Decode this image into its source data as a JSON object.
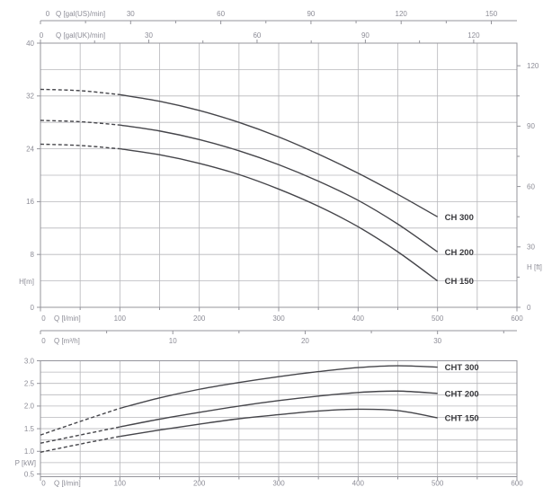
{
  "figure": {
    "description": "Pump performance curves: head (H) and power (P) versus flow rate (Q)",
    "background": "#ffffff",
    "colors": {
      "curve": "#45454a",
      "grid": "#b7b7bb",
      "axis": "#94949b",
      "tick_text": "#8d8d97",
      "curve_label": "#39393d"
    }
  },
  "chart_data": [
    {
      "type": "line",
      "title": "Head curves",
      "xlabel": "Q [l/min]",
      "ylabel": "H[m]",
      "ylabel_right": "H [ft]",
      "xlim": [
        0,
        600
      ],
      "ylim": [
        0,
        40
      ],
      "grid": true,
      "x_major_ticks": [
        0,
        100,
        200,
        300,
        400,
        500,
        600
      ],
      "x_minor_step": 50,
      "y_major_ticks": [
        0,
        8,
        16,
        24,
        32,
        40
      ],
      "y_grid_step": 4,
      "top_axis_us": {
        "label": "Q [gal(US)/min]",
        "ticks": [
          0,
          30,
          60,
          90,
          120,
          150
        ],
        "minor_step": 15,
        "lpm_per_unit": 3.785
      },
      "top_axis_uk": {
        "label": "Q [gal(UK)/min]",
        "ticks": [
          0,
          30,
          60,
          90,
          120
        ],
        "minor_step": 15,
        "lpm_per_unit": 4.546
      },
      "right_axis_ft": {
        "label": "H [ft]",
        "ticks": [
          0,
          30,
          60,
          90,
          120
        ],
        "minor_step": 15,
        "m_per_unit": 0.3048
      },
      "bottom_axis_m3h": {
        "label": "Q [m³/h]",
        "ticks": [
          0,
          10,
          20,
          30
        ],
        "minor_step": 5,
        "lpm_per_unit": 16.667
      },
      "x": [
        0,
        50,
        100,
        150,
        200,
        250,
        300,
        350,
        400,
        450,
        500
      ],
      "dashed_until": 100,
      "series": [
        {
          "name": "CH 300",
          "values": [
            33.0,
            32.8,
            32.2,
            31.2,
            29.8,
            28.0,
            25.8,
            23.2,
            20.3,
            17.1,
            13.7
          ]
        },
        {
          "name": "CH 200",
          "values": [
            28.3,
            28.1,
            27.6,
            26.7,
            25.4,
            23.7,
            21.6,
            19.1,
            16.2,
            12.6,
            8.4
          ]
        },
        {
          "name": "CH 150",
          "values": [
            24.7,
            24.5,
            24.0,
            23.1,
            21.8,
            20.1,
            17.9,
            15.3,
            12.2,
            8.4,
            4.0
          ]
        }
      ]
    },
    {
      "type": "line",
      "title": "Power curves",
      "xlabel": "Q [l/min]",
      "ylabel": "P [kW]",
      "xlim": [
        0,
        600
      ],
      "ylim": [
        0.44,
        3.0
      ],
      "grid": true,
      "x_major_ticks": [
        0,
        100,
        200,
        300,
        400,
        500,
        600
      ],
      "x_minor_step": 50,
      "y_major_ticks": [
        0.5,
        1.0,
        1.5,
        2.0,
        2.5,
        3.0
      ],
      "y_major_tick_labels": [
        "0.5",
        "1.0",
        "1.5",
        "2.0",
        "2.5",
        "3.0"
      ],
      "y_grid_step": 0.25,
      "x": [
        0,
        50,
        100,
        150,
        200,
        250,
        300,
        350,
        400,
        450,
        500
      ],
      "dashed_until": 100,
      "series": [
        {
          "name": "CHT 300",
          "values": [
            1.36,
            1.66,
            1.95,
            2.18,
            2.37,
            2.52,
            2.65,
            2.76,
            2.85,
            2.89,
            2.86
          ]
        },
        {
          "name": "CHT 200",
          "values": [
            1.18,
            1.36,
            1.54,
            1.71,
            1.86,
            2.0,
            2.12,
            2.22,
            2.3,
            2.33,
            2.28
          ]
        },
        {
          "name": "CHT 150",
          "values": [
            0.98,
            1.16,
            1.33,
            1.47,
            1.6,
            1.72,
            1.81,
            1.89,
            1.93,
            1.9,
            1.74
          ]
        }
      ]
    }
  ]
}
